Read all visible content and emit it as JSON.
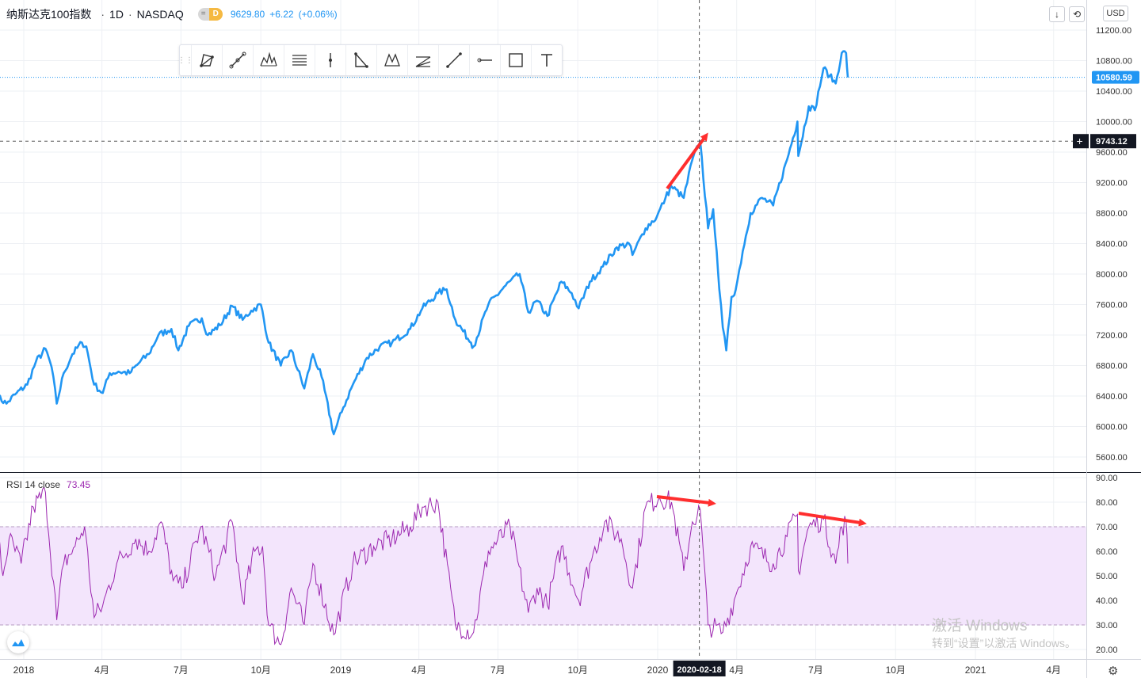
{
  "header": {
    "symbol": "纳斯达克100指数",
    "interval": "1D",
    "exchange": "NASDAQ",
    "badge_left": "=",
    "badge_right": "D",
    "price": "9629.80",
    "change": "+6.22",
    "change_pct": "(+0.06%)"
  },
  "currency": "USD",
  "buttons": {
    "arrow_label": "↓",
    "reset_label": "⟲"
  },
  "toolbar": {
    "tools": [
      "pattern-icon",
      "polyline-icon",
      "head-shoulders-icon",
      "parallel-channel-icon",
      "vertical-line-icon",
      "triangle-icon",
      "xabcd-icon",
      "fib-fan-icon",
      "trend-line-icon",
      "horizontal-ray-icon",
      "rectangle-icon",
      "text-icon"
    ]
  },
  "rsi_panel": {
    "title": "RSI 14 close",
    "value": "73.45"
  },
  "watermark": {
    "line1": "激活 Windows",
    "line2": "转到“设置”以激活 Windows。"
  },
  "colors": {
    "price": "#2196f3",
    "rsi": "#9c27b0",
    "rsi_band": "#f3e5fc",
    "annotation": "#ff2e2e",
    "crosshair": "#555555"
  },
  "chart_data": [
    {
      "type": "line",
      "title": "纳斯达克100指数 · 1D · NASDAQ",
      "x_tick_labels": [
        "2018",
        "4月",
        "7月",
        "10月",
        "2019",
        "4月",
        "7月",
        "10月",
        "2020",
        "2020-02-18",
        "4月",
        "7月",
        "10月",
        "2021",
        "4月"
      ],
      "y_tick_labels": [
        "5600.00",
        "6000.00",
        "6400.00",
        "6800.00",
        "7200.00",
        "7600.00",
        "8000.00",
        "8400.00",
        "8800.00",
        "9200.00",
        "9600.00",
        "10000.00",
        "10400.00",
        "10800.00",
        "11200.00"
      ],
      "ylim": [
        5420,
        11380
      ],
      "last_price_label": "10580.59",
      "crosshair": {
        "date": "2020-02-18",
        "price_label": "9743.12",
        "price": 9743.12
      },
      "series": [
        {
          "name": "",
          "points": [
            [
              "2017-12-01",
              6400
            ],
            [
              "2017-12-12",
              6300
            ],
            [
              "2017-12-22",
              6420
            ],
            [
              "2018-01-05",
              6550
            ],
            [
              "2018-01-15",
              6850
            ],
            [
              "2018-01-26",
              7020
            ],
            [
              "2018-02-02",
              6780
            ],
            [
              "2018-02-08",
              6300
            ],
            [
              "2018-02-16",
              6700
            ],
            [
              "2018-02-26",
              6950
            ],
            [
              "2018-03-09",
              7100
            ],
            [
              "2018-03-14",
              7050
            ],
            [
              "2018-03-23",
              6550
            ],
            [
              "2018-04-02",
              6440
            ],
            [
              "2018-04-10",
              6700
            ],
            [
              "2018-04-20",
              6720
            ],
            [
              "2018-05-03",
              6700
            ],
            [
              "2018-05-15",
              6850
            ],
            [
              "2018-05-25",
              6950
            ],
            [
              "2018-06-05",
              7200
            ],
            [
              "2018-06-20",
              7280
            ],
            [
              "2018-06-28",
              7000
            ],
            [
              "2018-07-10",
              7320
            ],
            [
              "2018-07-25",
              7420
            ],
            [
              "2018-08-01",
              7200
            ],
            [
              "2018-08-15",
              7330
            ],
            [
              "2018-08-29",
              7580
            ],
            [
              "2018-09-10",
              7400
            ],
            [
              "2018-09-20",
              7520
            ],
            [
              "2018-10-01",
              7600
            ],
            [
              "2018-10-10",
              7100
            ],
            [
              "2018-10-24",
              6800
            ],
            [
              "2018-11-05",
              7000
            ],
            [
              "2018-11-20",
              6500
            ],
            [
              "2018-11-30",
              6950
            ],
            [
              "2018-12-10",
              6650
            ],
            [
              "2018-12-24",
              5900
            ],
            [
              "2019-01-04",
              6250
            ],
            [
              "2019-01-15",
              6550
            ],
            [
              "2019-01-31",
              6900
            ],
            [
              "2019-02-15",
              7050
            ],
            [
              "2019-03-01",
              7100
            ],
            [
              "2019-03-22",
              7280
            ],
            [
              "2019-04-05",
              7550
            ],
            [
              "2019-04-23",
              7750
            ],
            [
              "2019-05-03",
              7800
            ],
            [
              "2019-05-13",
              7400
            ],
            [
              "2019-05-31",
              7100
            ],
            [
              "2019-06-03",
              7050
            ],
            [
              "2019-06-20",
              7600
            ],
            [
              "2019-07-10",
              7850
            ],
            [
              "2019-07-26",
              8000
            ],
            [
              "2019-08-05",
              7500
            ],
            [
              "2019-08-15",
              7650
            ],
            [
              "2019-08-27",
              7450
            ],
            [
              "2019-09-12",
              7900
            ],
            [
              "2019-09-24",
              7750
            ],
            [
              "2019-10-02",
              7550
            ],
            [
              "2019-10-15",
              7900
            ],
            [
              "2019-10-30",
              8100
            ],
            [
              "2019-11-15",
              8350
            ],
            [
              "2019-11-29",
              8400
            ],
            [
              "2019-12-03",
              8250
            ],
            [
              "2019-12-18",
              8600
            ],
            [
              "2019-12-31",
              8750
            ],
            [
              "2020-01-10",
              9000
            ],
            [
              "2020-01-17",
              9150
            ],
            [
              "2020-01-31",
              9000
            ],
            [
              "2020-02-10",
              9500
            ],
            [
              "2020-02-19",
              9743
            ],
            [
              "2020-02-28",
              8600
            ],
            [
              "2020-03-05",
              8850
            ],
            [
              "2020-03-09",
              8300
            ],
            [
              "2020-03-12",
              7800
            ],
            [
              "2020-03-16",
              7300
            ],
            [
              "2020-03-20",
              7000
            ],
            [
              "2020-03-26",
              7700
            ],
            [
              "2020-03-31",
              7800
            ],
            [
              "2020-04-08",
              8300
            ],
            [
              "2020-04-17",
              8800
            ],
            [
              "2020-04-30",
              9000
            ],
            [
              "2020-05-13",
              8900
            ],
            [
              "2020-05-29",
              9500
            ],
            [
              "2020-06-10",
              10000
            ],
            [
              "2020-06-11",
              9550
            ],
            [
              "2020-06-23",
              10200
            ],
            [
              "2020-06-30",
              10150
            ],
            [
              "2020-07-10",
              10700
            ],
            [
              "2020-07-17",
              10600
            ],
            [
              "2020-07-24",
              10500
            ],
            [
              "2020-07-31",
              10900
            ],
            [
              "2020-08-05",
              10900
            ],
            [
              "2020-08-07",
              10580
            ]
          ]
        }
      ]
    },
    {
      "type": "line",
      "title": "RSI 14 close",
      "y_tick_labels": [
        "20.00",
        "30.00",
        "40.00",
        "50.00",
        "60.00",
        "70.00",
        "80.00",
        "90.00"
      ],
      "ylim": [
        17,
        93
      ],
      "band": {
        "upper": 70,
        "lower": 30
      },
      "series": [
        {
          "name": "",
          "points": [
            [
              "2017-12-01",
              70
            ],
            [
              "2017-12-08",
              50
            ],
            [
              "2017-12-15",
              65
            ],
            [
              "2017-12-29",
              55
            ],
            [
              "2018-01-12",
              78
            ],
            [
              "2018-01-26",
              84
            ],
            [
              "2018-02-08",
              32
            ],
            [
              "2018-02-16",
              55
            ],
            [
              "2018-03-01",
              62
            ],
            [
              "2018-03-12",
              70
            ],
            [
              "2018-03-23",
              33
            ],
            [
              "2018-04-02",
              38
            ],
            [
              "2018-04-18",
              55
            ],
            [
              "2018-05-10",
              65
            ],
            [
              "2018-05-25",
              60
            ],
            [
              "2018-06-08",
              72
            ],
            [
              "2018-06-22",
              48
            ],
            [
              "2018-07-02",
              45
            ],
            [
              "2018-07-24",
              70
            ],
            [
              "2018-08-10",
              50
            ],
            [
              "2018-08-29",
              72
            ],
            [
              "2018-09-10",
              40
            ],
            [
              "2018-09-24",
              60
            ],
            [
              "2018-10-03",
              62
            ],
            [
              "2018-10-10",
              30
            ],
            [
              "2018-10-24",
              22
            ],
            [
              "2018-11-05",
              45
            ],
            [
              "2018-11-20",
              30
            ],
            [
              "2018-11-30",
              55
            ],
            [
              "2018-12-24",
              26
            ],
            [
              "2019-01-15",
              55
            ],
            [
              "2019-02-08",
              62
            ],
            [
              "2019-03-01",
              65
            ],
            [
              "2019-03-22",
              70
            ],
            [
              "2019-04-05",
              78
            ],
            [
              "2019-04-23",
              80
            ],
            [
              "2019-05-13",
              30
            ],
            [
              "2019-06-03",
              27
            ],
            [
              "2019-06-20",
              60
            ],
            [
              "2019-07-15",
              70
            ],
            [
              "2019-08-05",
              35
            ],
            [
              "2019-08-15",
              45
            ],
            [
              "2019-08-27",
              38
            ],
            [
              "2019-09-12",
              62
            ],
            [
              "2019-10-02",
              40
            ],
            [
              "2019-10-15",
              55
            ],
            [
              "2019-11-01",
              72
            ],
            [
              "2019-11-20",
              65
            ],
            [
              "2019-12-03",
              45
            ],
            [
              "2019-12-18",
              78
            ],
            [
              "2020-01-03",
              82
            ],
            [
              "2020-01-17",
              80
            ],
            [
              "2020-01-31",
              52
            ],
            [
              "2020-02-10",
              72
            ],
            [
              "2020-02-19",
              77
            ],
            [
              "2020-02-28",
              30
            ],
            [
              "2020-03-16",
              27
            ],
            [
              "2020-03-31",
              42
            ],
            [
              "2020-04-17",
              62
            ],
            [
              "2020-05-13",
              55
            ],
            [
              "2020-05-29",
              66
            ],
            [
              "2020-06-10",
              75
            ],
            [
              "2020-06-11",
              52
            ],
            [
              "2020-06-23",
              70
            ],
            [
              "2020-07-10",
              73
            ],
            [
              "2020-07-24",
              55
            ],
            [
              "2020-07-31",
              70
            ],
            [
              "2020-08-05",
              72
            ],
            [
              "2020-08-07",
              55
            ]
          ]
        }
      ]
    }
  ]
}
